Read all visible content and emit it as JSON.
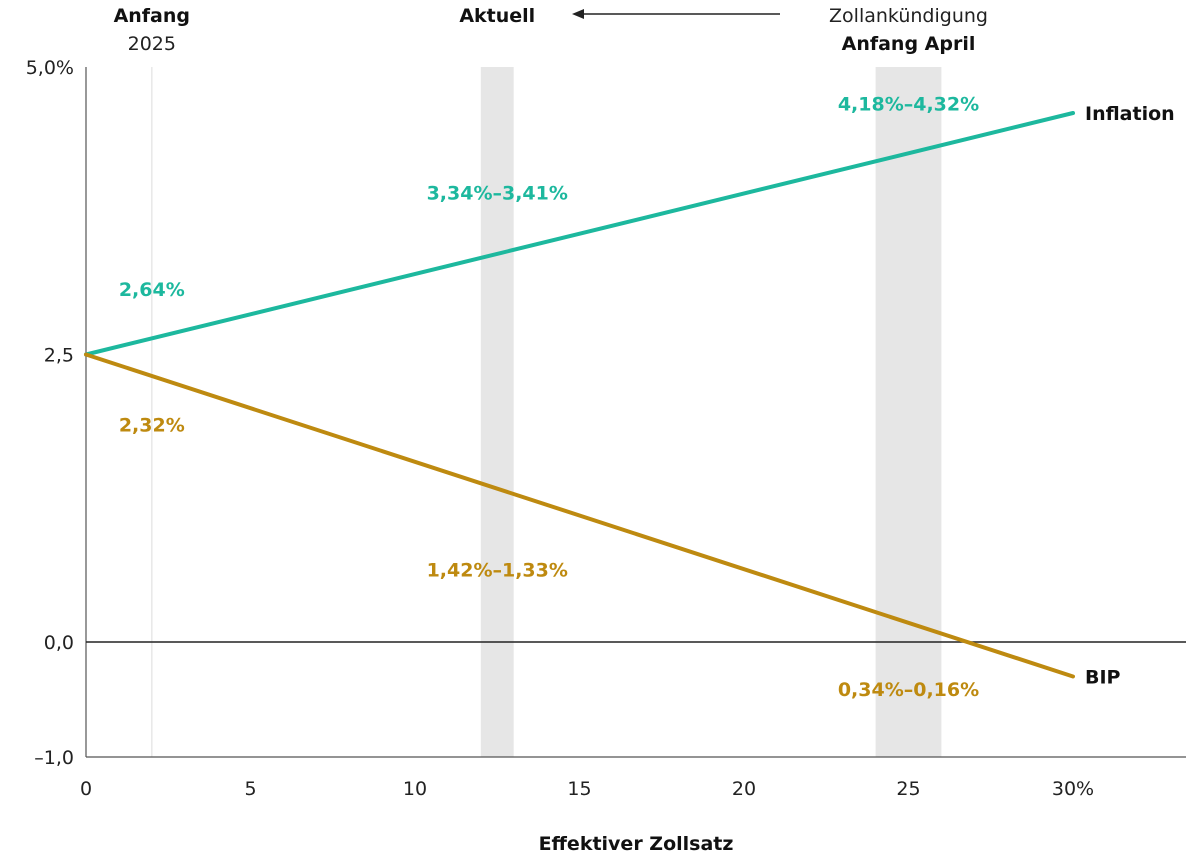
{
  "chart_data": {
    "type": "line",
    "xlabel": "Effektiver Zollsatz",
    "xlim": [
      0,
      33.5
    ],
    "ylim": [
      -1.0,
      5.0
    ],
    "x_ticks": [
      {
        "value": 0,
        "label": "0"
      },
      {
        "value": 5,
        "label": "5"
      },
      {
        "value": 10,
        "label": "10"
      },
      {
        "value": 15,
        "label": "15"
      },
      {
        "value": 20,
        "label": "20"
      },
      {
        "value": 25,
        "label": "25"
      },
      {
        "value": 30,
        "label": "30%"
      }
    ],
    "y_ticks": [
      {
        "value": 5.0,
        "label": "5,0%"
      },
      {
        "value": 2.5,
        "label": "2,5"
      },
      {
        "value": 0.0,
        "label": "0,0"
      },
      {
        "value": -1.0,
        "label": "–1,0"
      }
    ],
    "series": [
      {
        "name": "Inflation",
        "color": "#1DB89E",
        "x": [
          0,
          30
        ],
        "y": [
          2.5,
          4.6
        ]
      },
      {
        "name": "BIP",
        "color": "#BE8A10",
        "x": [
          0,
          30
        ],
        "y": [
          2.5,
          -0.3
        ]
      }
    ],
    "reference_line": {
      "x": 2
    },
    "bands": [
      {
        "x": [
          12,
          13
        ],
        "label_bold": "Aktuell",
        "label_normal": ""
      },
      {
        "x": [
          24,
          26
        ],
        "label_normal": "Zollankündigung",
        "label_bold": "Anfang April"
      }
    ],
    "reference_label": {
      "bold": "Anfang",
      "normal": "2025"
    },
    "annotations": [
      {
        "text": "2,64%",
        "series": "Inflation",
        "x": 2,
        "y": 3.01
      },
      {
        "text": "3,34%–3,41%",
        "series": "Inflation",
        "x": 12.5,
        "y": 3.85
      },
      {
        "text": "4,18%–4,32%",
        "series": "Inflation",
        "x": 25,
        "y": 4.62
      },
      {
        "text": "2,32%",
        "series": "BIP",
        "x": 2,
        "y": 1.83
      },
      {
        "text": "1,42%–1,33%",
        "series": "BIP",
        "x": 12.5,
        "y": 0.57
      },
      {
        "text": "0,34%–0,16%",
        "series": "BIP",
        "x": 25,
        "y": -0.47
      }
    ]
  }
}
